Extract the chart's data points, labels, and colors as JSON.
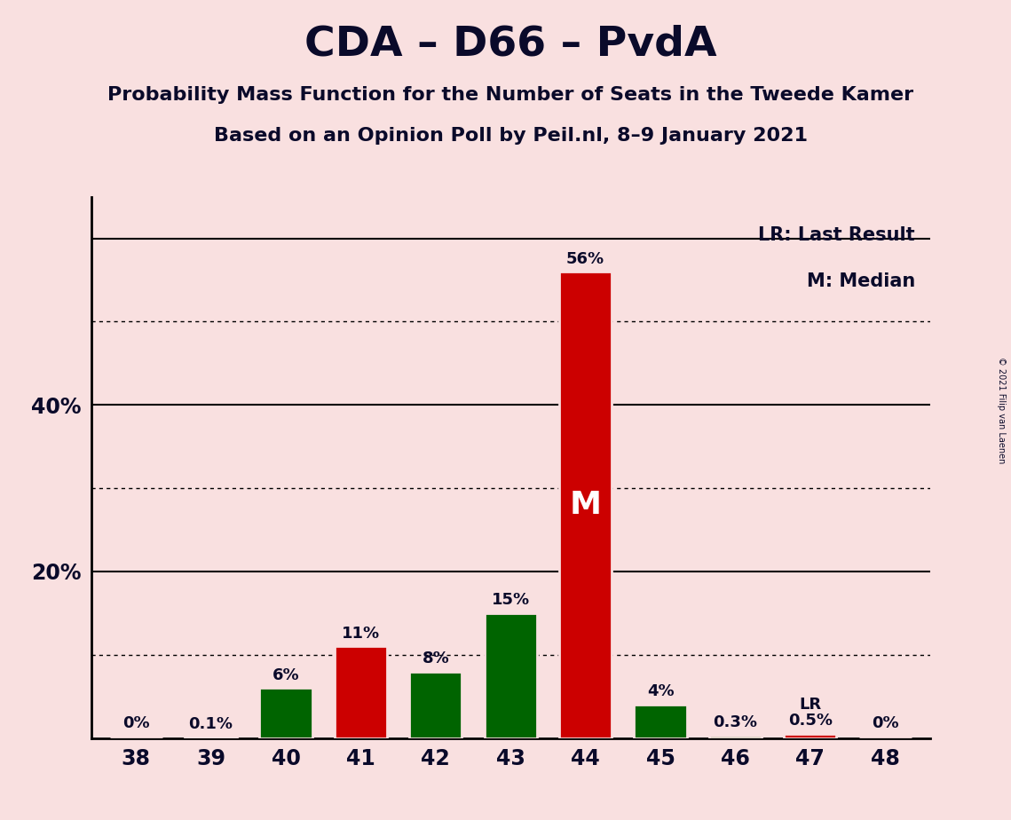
{
  "title": "CDA – D66 – PvdA",
  "subtitle1": "Probability Mass Function for the Number of Seats in the Tweede Kamer",
  "subtitle2": "Based on an Opinion Poll by Peil.nl, 8–9 January 2021",
  "copyright": "© 2021 Filip van Laenen",
  "categories": [
    38,
    39,
    40,
    41,
    42,
    43,
    44,
    45,
    46,
    47,
    48
  ],
  "values": [
    0.0,
    0.1,
    6.0,
    11.0,
    8.0,
    15.0,
    56.0,
    4.0,
    0.3,
    0.5,
    0.0
  ],
  "labels": [
    "0%",
    "0.1%",
    "6%",
    "11%",
    "8%",
    "15%",
    "56%",
    "4%",
    "0.3%",
    "0.5%",
    "0%"
  ],
  "colors": [
    "#006400",
    "#006400",
    "#006400",
    "#CC0000",
    "#006400",
    "#006400",
    "#CC0000",
    "#006400",
    "#006400",
    "#CC0000",
    "#006400"
  ],
  "median_bar": 44,
  "lr_bar": 47,
  "median_label": "M",
  "lr_label": "LR",
  "legend_lr": "LR: Last Result",
  "legend_m": "M: Median",
  "background_color": "#F9E0E0",
  "bar_edge_color": "#F9E0E0",
  "title_color": "#0A0A2A",
  "ymax": 65,
  "solid_gridlines": [
    20,
    40,
    60
  ],
  "dotted_gridlines": [
    10,
    30,
    50
  ]
}
